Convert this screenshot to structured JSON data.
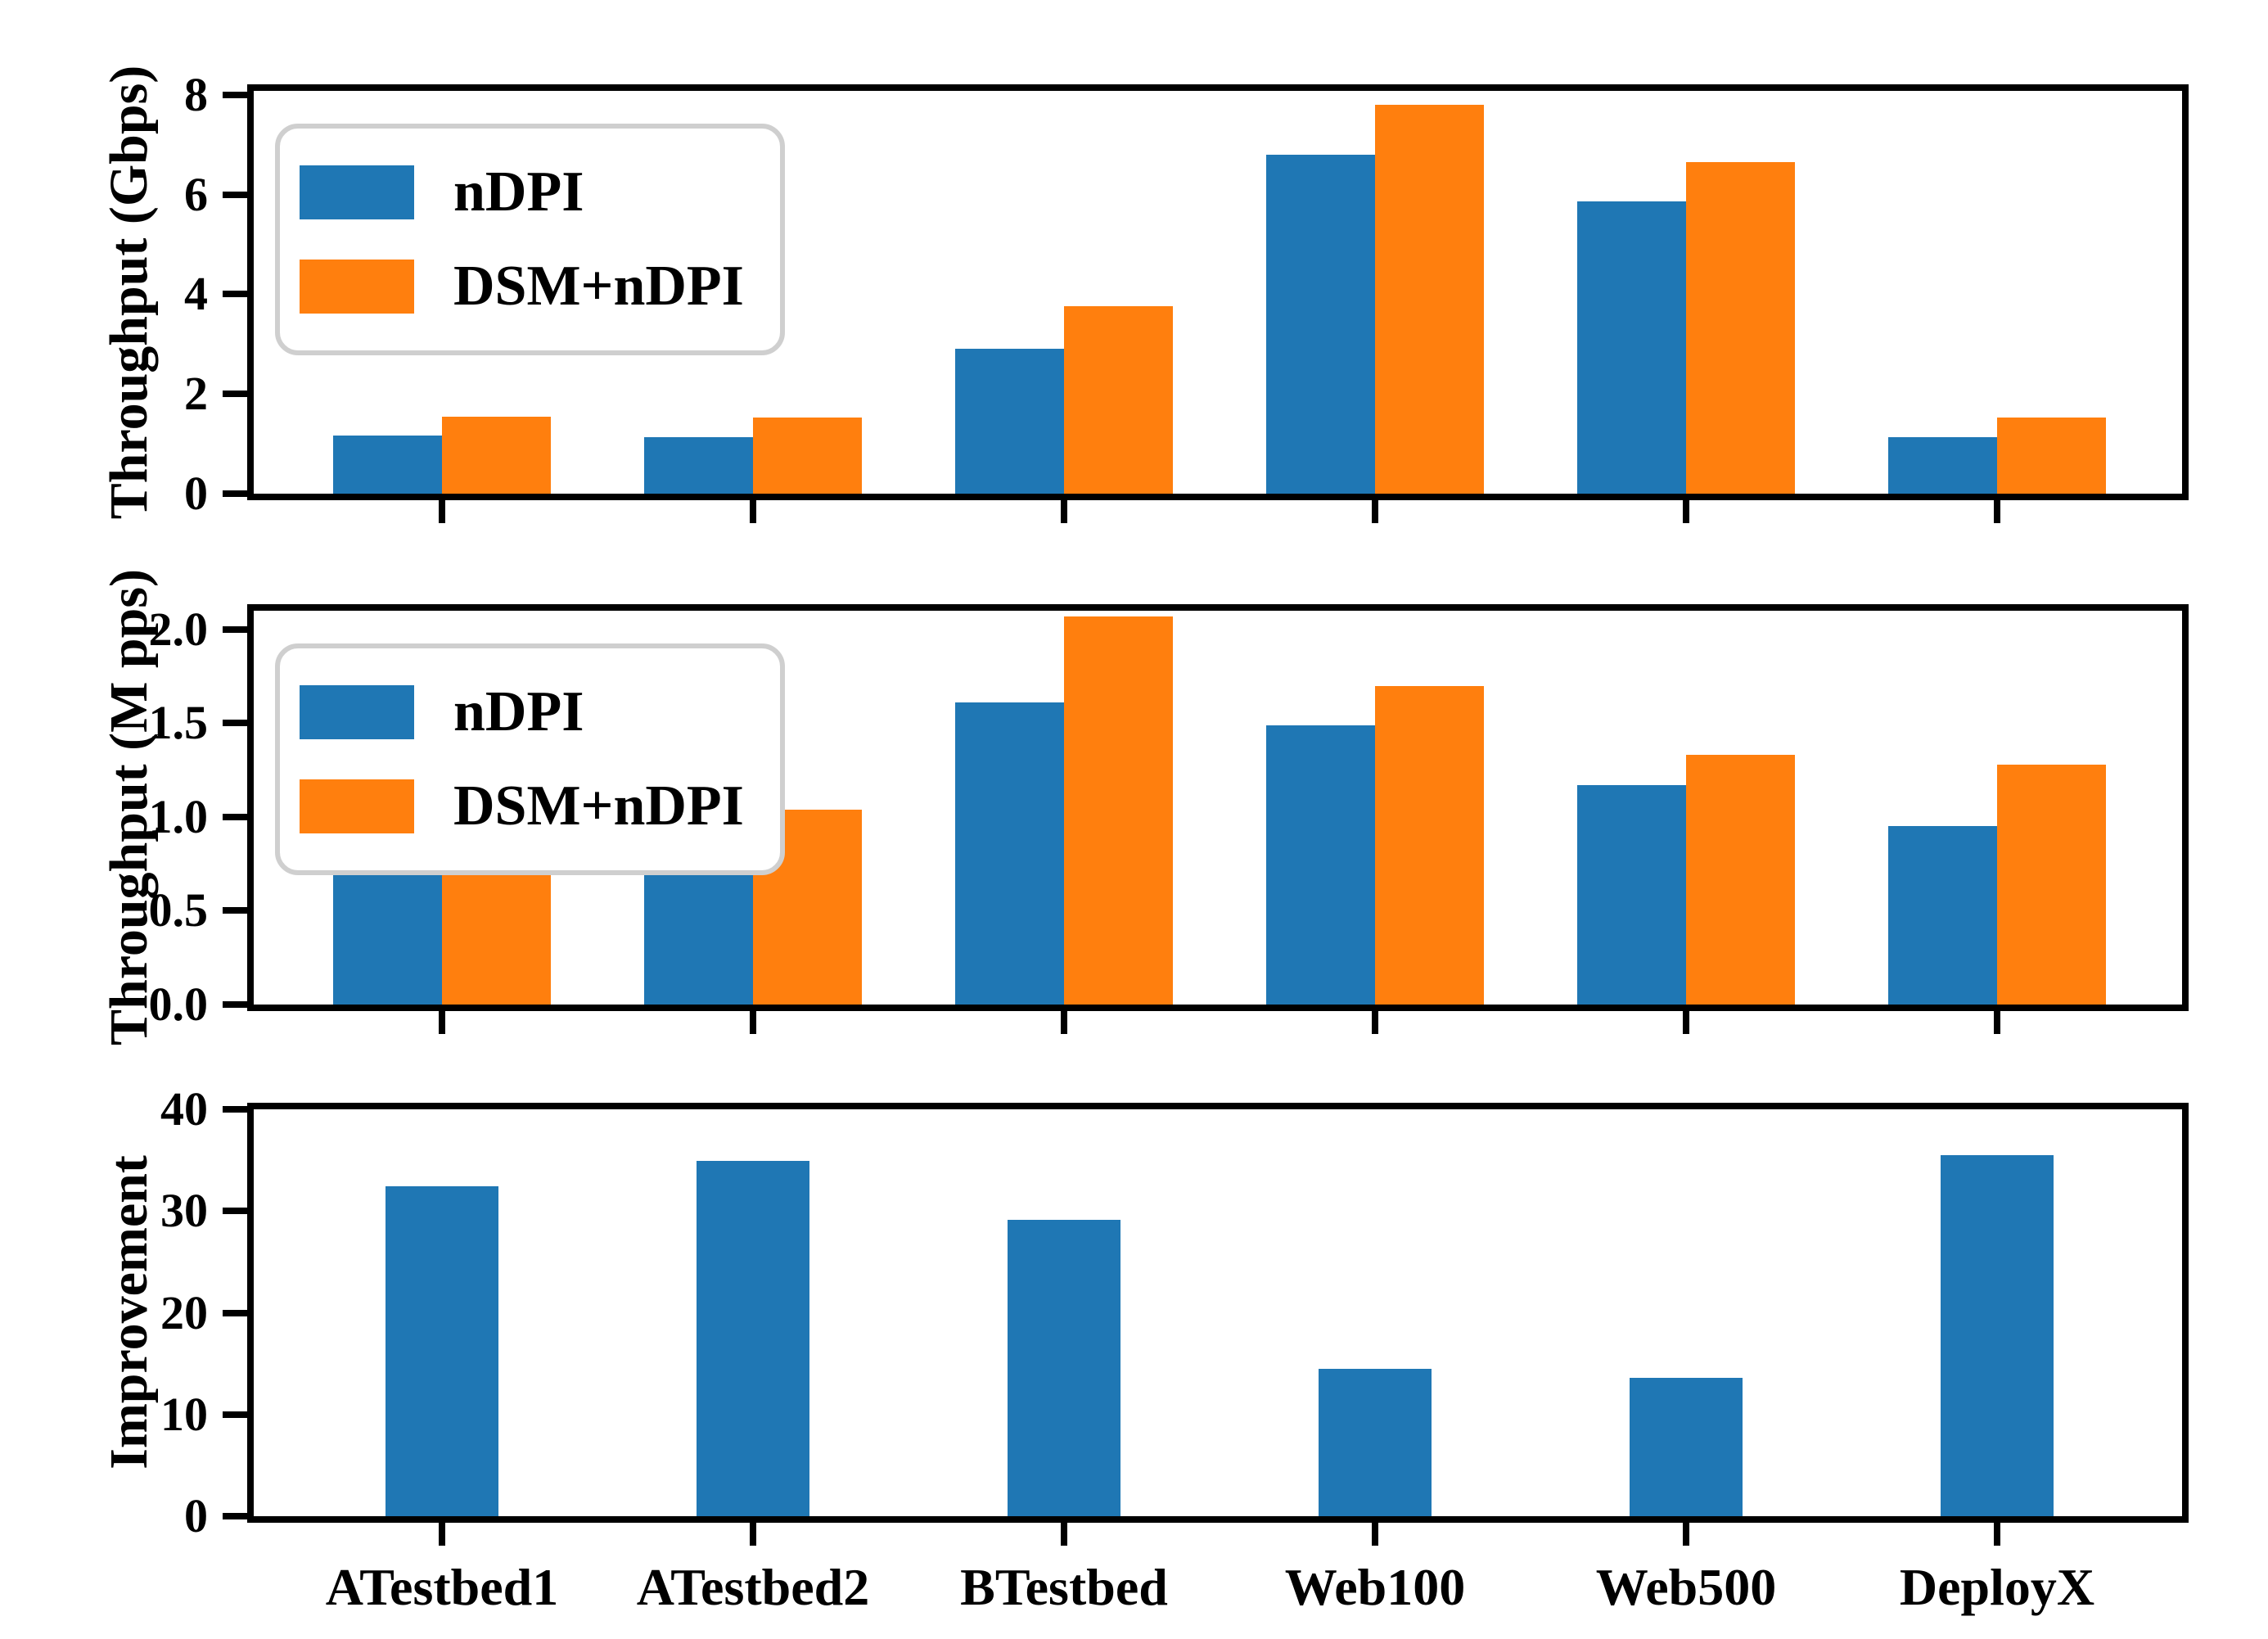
{
  "figure": {
    "background": "#ffffff",
    "n_subplots": 3
  },
  "categories": [
    "ATestbed1",
    "ATestbed2",
    "BTestbed",
    "Web100",
    "Web500",
    "DeployX"
  ],
  "legend": {
    "labels": [
      "nDPI",
      "DSM+nDPI"
    ]
  },
  "colors": {
    "ndpi": "#1f77b4",
    "dsm_ndpi": "#ff7f0e",
    "spine": "#000000",
    "legend_border": "#cfcfcf"
  },
  "chart_data": [
    {
      "type": "bar",
      "title": "",
      "xlabel": "",
      "ylabel": "Throughput (Gbps)",
      "categories": [
        "ATestbed1",
        "ATestbed2",
        "BTestbed",
        "Web100",
        "Web500",
        "DeployX"
      ],
      "series": [
        {
          "name": "nDPI",
          "color": "#1f77b4",
          "values": [
            1.17,
            1.13,
            2.9,
            6.8,
            5.87,
            1.14
          ]
        },
        {
          "name": "DSM+nDPI",
          "color": "#ff7f0e",
          "values": [
            1.55,
            1.53,
            3.76,
            7.8,
            6.65,
            1.53
          ]
        }
      ],
      "ylim": [
        0,
        8.08
      ],
      "yticks": [
        0,
        2,
        4,
        6,
        8
      ],
      "ytick_labels": [
        "0",
        "2",
        "4",
        "6",
        "8"
      ],
      "grid": false,
      "legend": true,
      "legend_position": "upper-left",
      "show_x_labels": false
    },
    {
      "type": "bar",
      "title": "",
      "xlabel": "",
      "ylabel": "Throughput (M pps)",
      "categories": [
        "ATestbed1",
        "ATestbed2",
        "BTestbed",
        "Web100",
        "Web500",
        "DeployX"
      ],
      "series": [
        {
          "name": "nDPI",
          "color": "#1f77b4",
          "values": [
            0.81,
            0.77,
            1.61,
            1.49,
            1.17,
            0.95
          ]
        },
        {
          "name": "DSM+nDPI",
          "color": "#ff7f0e",
          "values": [
            1.07,
            1.04,
            2.07,
            1.7,
            1.33,
            1.28
          ]
        }
      ],
      "ylim": [
        0,
        2.1
      ],
      "yticks": [
        0,
        0.5,
        1.0,
        1.5,
        2.0
      ],
      "ytick_labels": [
        "0.0",
        "0.5",
        "1.0",
        "1.5",
        "2.0"
      ],
      "grid": false,
      "legend": true,
      "legend_position": "upper-left",
      "show_x_labels": false
    },
    {
      "type": "bar",
      "title": "",
      "xlabel": "",
      "ylabel": "Improvement",
      "categories": [
        "ATestbed1",
        "ATestbed2",
        "BTestbed",
        "Web100",
        "Web500",
        "DeployX"
      ],
      "series": [
        {
          "name": "Improvement",
          "color": "#1f77b4",
          "values": [
            32.4,
            34.9,
            29.1,
            14.5,
            13.6,
            35.5
          ]
        }
      ],
      "ylim": [
        0,
        40
      ],
      "yticks": [
        0,
        10,
        20,
        30,
        40
      ],
      "ytick_labels": [
        "0",
        "10",
        "20",
        "30",
        "40"
      ],
      "grid": false,
      "legend": false,
      "legend_position": "none",
      "show_x_labels": true
    }
  ]
}
